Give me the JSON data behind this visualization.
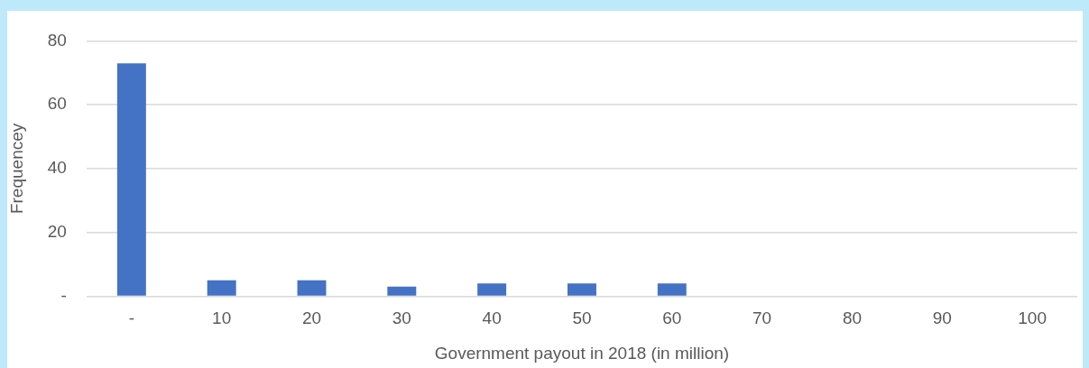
{
  "chart_data": {
    "type": "bar",
    "categories": [
      "-",
      "10",
      "20",
      "30",
      "40",
      "50",
      "60",
      "70",
      "80",
      "90",
      "100"
    ],
    "values": [
      73,
      5,
      5,
      3,
      4,
      4,
      4,
      0,
      0,
      0,
      0
    ],
    "color": "#4472c4",
    "xlabel": "Government payout in 2018 (in million)",
    "ylabel": "Frequencey",
    "ylim": [
      0,
      80
    ],
    "yticks": [
      {
        "value": 0,
        "label": "-"
      },
      20,
      40,
      60,
      80
    ],
    "grid": "y"
  }
}
